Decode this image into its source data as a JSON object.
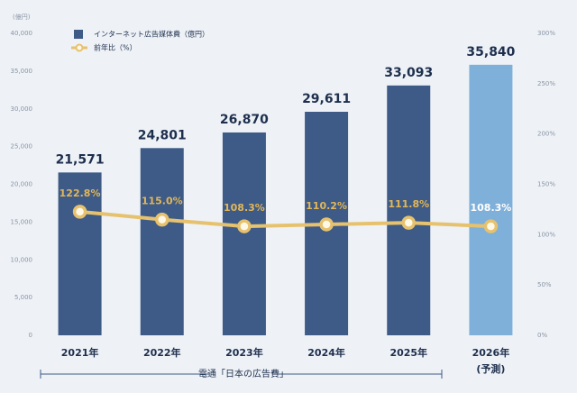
{
  "chart_data": {
    "type": "bar",
    "ylabel": "(億円)",
    "categories": [
      "2021年",
      "2022年",
      "2023年",
      "2024年",
      "2025年",
      "2026年"
    ],
    "forecast_note": "(予測)",
    "series": [
      {
        "name": "インターネット広告媒体費（億円）",
        "color": "#3e5a86",
        "colors": [
          "#3e5a86",
          "#3e5a86",
          "#3e5a86",
          "#3e5a86",
          "#3e5a86",
          "#7fb0d9"
        ],
        "values": [
          21571,
          24801,
          26870,
          29611,
          33093,
          35840
        ],
        "value_labels": [
          "21,571",
          "24,801",
          "26,870",
          "29,611",
          "33,093",
          "35,840"
        ]
      },
      {
        "name": "前年比（%）",
        "color": "#e6c26e",
        "axis": "y2",
        "values": [
          122.8,
          115.0,
          108.3,
          110.2,
          111.8,
          108.3
        ],
        "value_labels": [
          "122.8%",
          "115.0%",
          "108.3%",
          "110.2%",
          "111.8%",
          "108.3%"
        ]
      }
    ],
    "ylim": [
      0,
      40000
    ],
    "yticks": [
      0,
      {
        "value": 5000,
        "label": "5,000"
      },
      {
        "value": 10000,
        "label": "10,000"
      },
      {
        "value": 15000,
        "label": "15,000"
      },
      {
        "value": 20000,
        "label": "20,000"
      },
      {
        "value": 25000,
        "label": "25,000"
      },
      {
        "value": 30000,
        "label": "30,000"
      },
      {
        "value": 35000,
        "label": "35,000"
      },
      {
        "value": 40000,
        "label": "40,000"
      }
    ],
    "y2lim": [
      0,
      300
    ],
    "y2ticks": [
      {
        "value": 0,
        "label": "0%"
      },
      {
        "value": 50,
        "label": "50%"
      },
      {
        "value": 100,
        "label": "100%"
      },
      {
        "value": 150,
        "label": "150%"
      },
      {
        "value": 200,
        "label": "200%"
      },
      {
        "value": 250,
        "label": "250%"
      },
      {
        "value": 300,
        "label": "300%"
      }
    ],
    "source": "電通「日本の広告費」"
  }
}
